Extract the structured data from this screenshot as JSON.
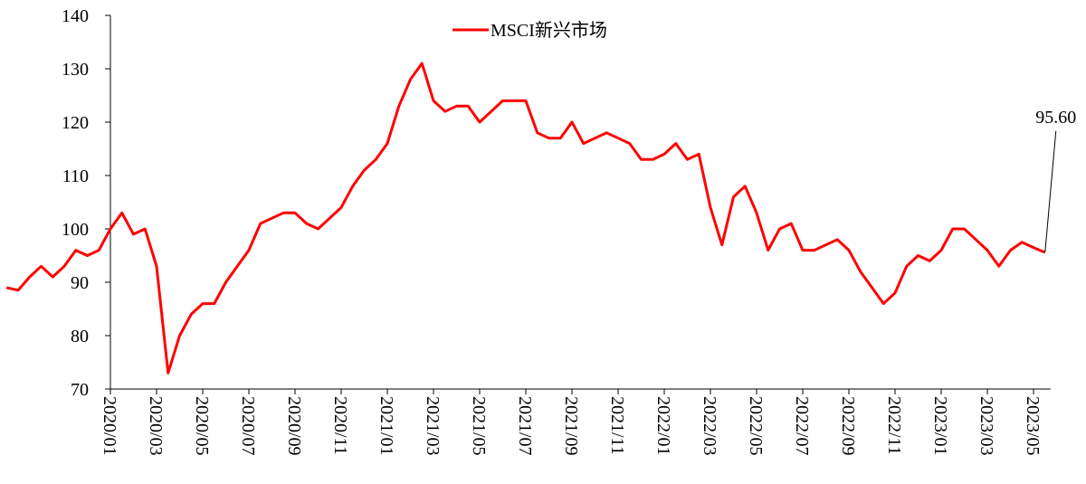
{
  "chart_data": {
    "type": "line",
    "categories": [
      null,
      null,
      null,
      null,
      null,
      null,
      null,
      null,
      null,
      "2020/01",
      null,
      null,
      null,
      "2020/03",
      null,
      null,
      null,
      "2020/05",
      null,
      null,
      null,
      "2020/07",
      null,
      null,
      null,
      "2020/09",
      null,
      null,
      null,
      "2020/11",
      null,
      null,
      null,
      "2021/01",
      null,
      null,
      null,
      "2021/03",
      null,
      null,
      null,
      "2021/05",
      null,
      null,
      null,
      "2021/07",
      null,
      null,
      null,
      "2021/09",
      null,
      null,
      null,
      "2021/11",
      null,
      null,
      null,
      "2022/01",
      null,
      null,
      null,
      "2022/03",
      null,
      null,
      null,
      "2022/05",
      null,
      null,
      null,
      "2022/07",
      null,
      null,
      null,
      "2022/09",
      null,
      null,
      null,
      "2022/11",
      null,
      null,
      null,
      "2023/01",
      null,
      null,
      null,
      "2023/03",
      null,
      null,
      null,
      "2023/05",
      null
    ],
    "series": [
      {
        "name": "MSCI新兴市场",
        "color": "#ff0000",
        "values": [
          89,
          88.5,
          91,
          93,
          91,
          93,
          96,
          95,
          96,
          100,
          103,
          99,
          100,
          93,
          73,
          80,
          84,
          86,
          86,
          90,
          93,
          96,
          101,
          102,
          103,
          103,
          101,
          100,
          102,
          104,
          108,
          111,
          113,
          116,
          123,
          128,
          131,
          124,
          122,
          123,
          123,
          120,
          122,
          124,
          124,
          124,
          118,
          117,
          117,
          120,
          116,
          117,
          118,
          117,
          116,
          113,
          113,
          114,
          116,
          113,
          114,
          104,
          97,
          106,
          108,
          103,
          96,
          100,
          101,
          96,
          96,
          97,
          98,
          96,
          92,
          89,
          86,
          88,
          93,
          95,
          94,
          96,
          100,
          100,
          98,
          96,
          93,
          96,
          97.5,
          96.5,
          95.6
        ],
        "value_labels": [
          null,
          null,
          null,
          null,
          null,
          null,
          null,
          null,
          null,
          null,
          null,
          null,
          null,
          null,
          null,
          null,
          null,
          null,
          null,
          null,
          null,
          null,
          null,
          null,
          null,
          null,
          null,
          null,
          null,
          null,
          null,
          null,
          null,
          null,
          null,
          null,
          null,
          null,
          null,
          null,
          null,
          null,
          null,
          null,
          null,
          null,
          null,
          null,
          null,
          null,
          null,
          null,
          null,
          null,
          null,
          null,
          null,
          null,
          null,
          null,
          null,
          null,
          null,
          null,
          null,
          null,
          null,
          null,
          null,
          null,
          null,
          null,
          null,
          null,
          null,
          null,
          null,
          null,
          null,
          null,
          null,
          null,
          null,
          null,
          null,
          null,
          null,
          null,
          null,
          null,
          "95.60"
        ]
      }
    ],
    "ylim": [
      70,
      140
    ],
    "yticks": [
      70,
      80,
      90,
      100,
      110,
      120,
      130,
      140
    ],
    "legend": "top"
  }
}
